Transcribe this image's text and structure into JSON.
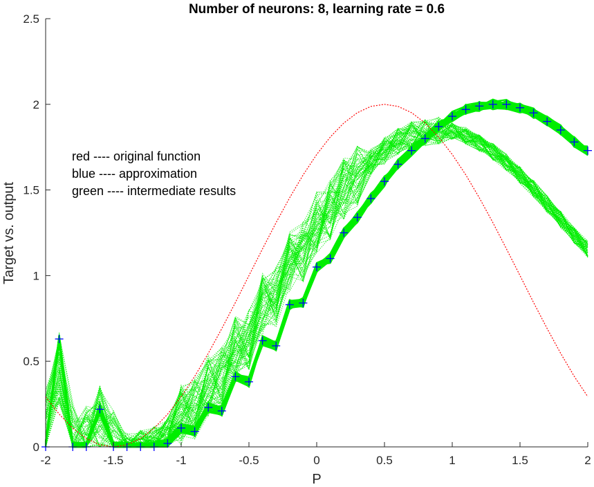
{
  "chart_data": {
    "type": "line",
    "title": "Number of neurons: 8, learning rate = 0.6",
    "xlabel": "P",
    "ylabel": "Target vs. output",
    "xlim": [
      -2,
      2
    ],
    "ylim": [
      0,
      2.5
    ],
    "xticks": [
      -2,
      -1.5,
      -1,
      -0.5,
      0,
      0.5,
      1,
      1.5,
      2
    ],
    "xtick_labels": [
      "-2",
      "-1.5",
      "-1",
      "-0.5",
      "0",
      "0.5",
      "1",
      "1.5",
      "2"
    ],
    "yticks": [
      0,
      0.5,
      1,
      1.5,
      2,
      2.5
    ],
    "ytick_labels": [
      "0",
      "0.5",
      "1",
      "1.5",
      "2",
      "2.5"
    ],
    "grid": false,
    "legend_text": [
      "red ---- original function",
      "blue ---- approximation",
      "green ---- intermediate results"
    ],
    "series": [
      {
        "color": "#ff0000",
        "style": "dotted-line",
        "x": [
          -2.0,
          -1.9,
          -1.8,
          -1.7,
          -1.6,
          -1.5,
          -1.4,
          -1.3,
          -1.2,
          -1.1,
          -1.0,
          -0.9,
          -0.8,
          -0.7,
          -0.6,
          -0.5,
          -0.4,
          -0.3,
          -0.2,
          -0.1,
          0.0,
          0.1,
          0.2,
          0.3,
          0.4,
          0.5,
          0.6,
          0.7,
          0.8,
          0.9,
          1.0,
          1.1,
          1.2,
          1.3,
          1.4,
          1.5,
          1.6,
          1.7,
          1.8,
          1.9,
          2.0
        ],
        "y": [
          0.293,
          0.191,
          0.109,
          0.049,
          0.012,
          0.0,
          0.012,
          0.049,
          0.109,
          0.191,
          0.293,
          0.412,
          0.546,
          0.691,
          0.843,
          1.0,
          1.156,
          1.309,
          1.454,
          1.588,
          1.707,
          1.809,
          1.891,
          1.951,
          1.988,
          2.0,
          1.988,
          1.951,
          1.891,
          1.809,
          1.707,
          1.588,
          1.454,
          1.309,
          1.156,
          1.0,
          0.843,
          0.691,
          0.546,
          0.412,
          0.293
        ]
      },
      {
        "color": "#0000ff",
        "style": "plus-markers",
        "x": [
          -2.0,
          -1.9,
          -1.8,
          -1.7,
          -1.6,
          -1.5,
          -1.4,
          -1.3,
          -1.2,
          -1.1,
          -1.0,
          -0.9,
          -0.8,
          -0.7,
          -0.6,
          -0.5,
          -0.4,
          -0.3,
          -0.2,
          -0.1,
          0.0,
          0.1,
          0.2,
          0.3,
          0.4,
          0.5,
          0.6,
          0.7,
          0.8,
          0.9,
          1.0,
          1.1,
          1.2,
          1.3,
          1.4,
          1.5,
          1.6,
          1.7,
          1.8,
          1.9,
          2.0
        ],
        "y": [
          0.0,
          0.63,
          0.0,
          0.0,
          0.22,
          0.0,
          0.0,
          0.0,
          0.0,
          0.02,
          0.11,
          0.09,
          0.23,
          0.21,
          0.41,
          0.38,
          0.62,
          0.59,
          0.83,
          0.84,
          1.05,
          1.1,
          1.25,
          1.34,
          1.45,
          1.55,
          1.65,
          1.73,
          1.8,
          1.87,
          1.93,
          1.97,
          1.99,
          2.0,
          2.0,
          1.98,
          1.95,
          1.9,
          1.85,
          1.78,
          1.73
        ]
      }
    ],
    "intermediate_color": "#00ee00"
  }
}
